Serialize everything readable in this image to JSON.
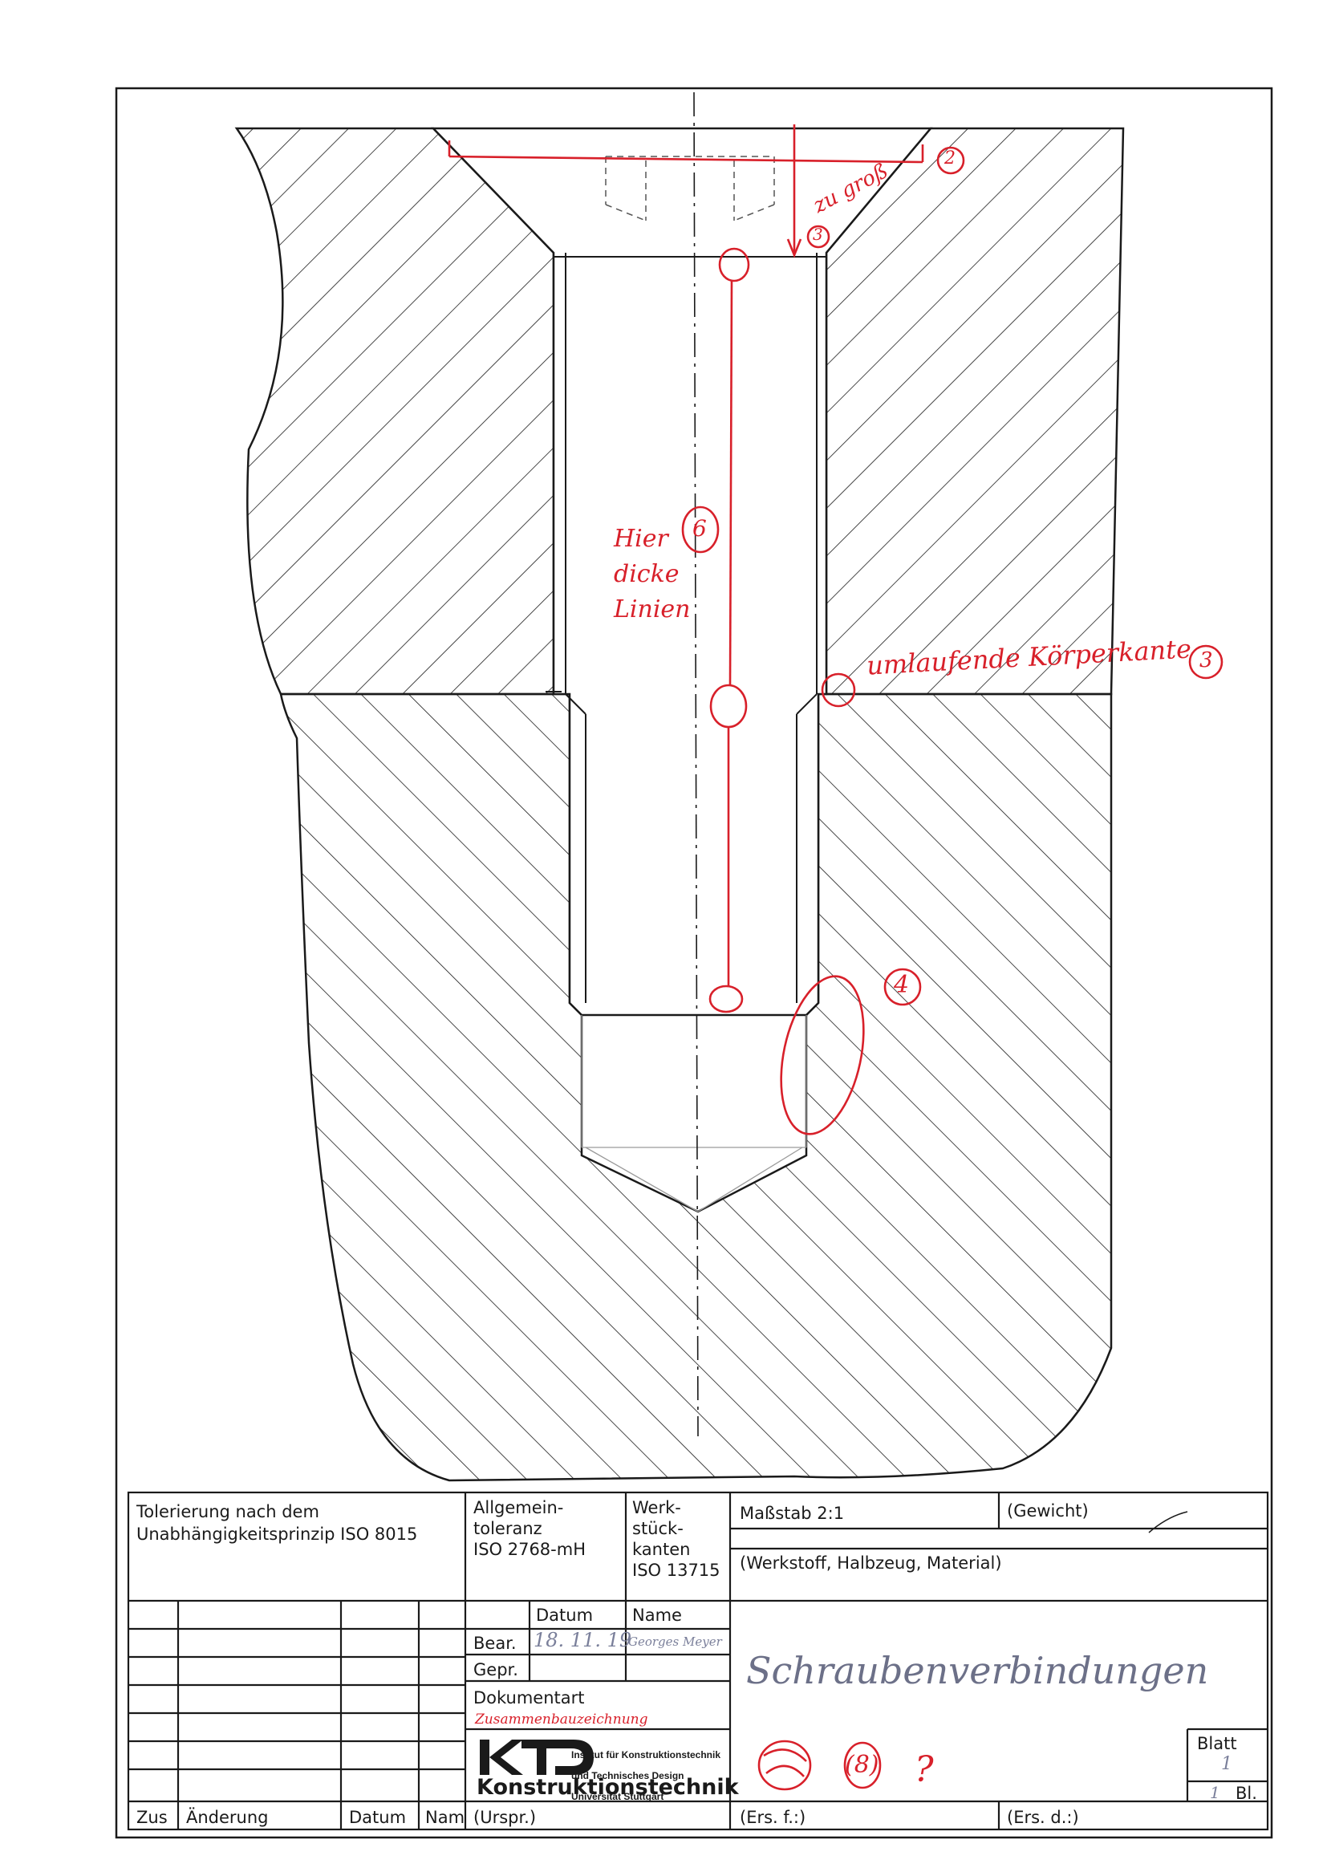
{
  "title_block": {
    "tolerancing": "Tolerierung nach dem\nUnabhängigkeitsprinzip ISO 8015",
    "general_tolerance": "Allgemein-\ntoleranz\nISO 2768-mH",
    "workpiece_edges": "Werk-\nstück-\nkanten\nISO 13715",
    "scale": "Maßstab 2:1",
    "weight": "(Gewicht)",
    "weight_value": "—",
    "material": "(Werkstoff, Halbzeug, Material)",
    "date_header": "Datum",
    "name_header": "Name",
    "bear_label": "Bear.",
    "bear_date": "18. 11. 19",
    "bear_name": "Georges Meyer",
    "gepr_label": "Gepr.",
    "doc_type_label": "Dokumentart",
    "doc_type_value": "Zusammenbauzeichnung",
    "drawing_title": "Schraubenverbindungen",
    "sheet_label": "Blatt",
    "sheet_number": "1",
    "sheet_total_suffix": "Bl.",
    "sheet_total": "1",
    "revision_zus": "Zus",
    "revision_aenderung": "Änderung",
    "revision_datum": "Datum",
    "revision_nam": "Nam",
    "original": "(Urspr.)",
    "replacement_for": "(Ers. f.:)",
    "replaced_by": "(Ers. d.:)",
    "grade_mark": "(8)",
    "question_mark": "?"
  },
  "logo": {
    "mark": "KTD",
    "line1": "Institut für Konstruktionstechnik",
    "line2": "und Technisches Design",
    "line3": "Universität Stuttgart",
    "name": "Konstruktionstechnik"
  },
  "annotations": {
    "too_big": "zu groß",
    "mark_2": "2",
    "mark_3_top": "3",
    "here_thick_lines": "Hier\ndicke\nLinien",
    "mark_6": "6",
    "edge_note": "umlaufende Körperkante",
    "mark_3_edge": "3",
    "mark_4": "4"
  },
  "colors": {
    "ink": "#1a1a1a",
    "correction_red": "#d8202a",
    "pencil_gray": "#9a9a9a"
  }
}
